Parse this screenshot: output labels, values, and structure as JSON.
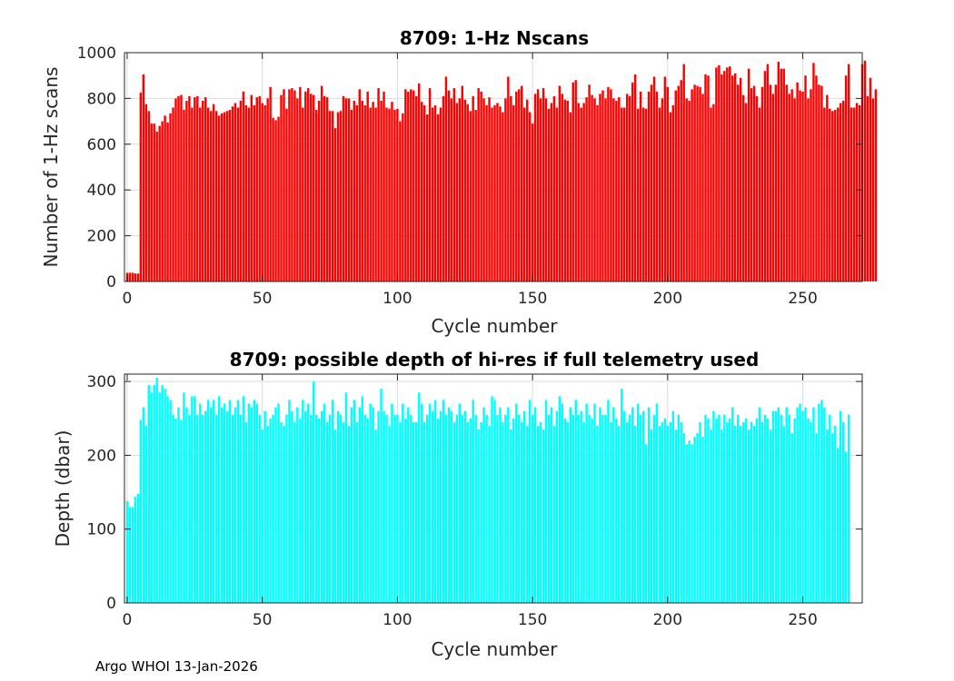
{
  "footer": "Argo WHOI 13-Jan-2026",
  "chart_data": [
    {
      "type": "bar",
      "title": "8709: 1-Hz Nscans",
      "xlabel": "Cycle number",
      "ylabel": "Number of 1-Hz scans",
      "color": "#ff0000",
      "xlim": [
        -1,
        272
      ],
      "ylim": [
        0,
        1000
      ],
      "xticks": [
        0,
        50,
        100,
        150,
        200,
        250
      ],
      "yticks": [
        0,
        200,
        400,
        600,
        800,
        1000
      ],
      "grid": true,
      "values": [
        38,
        38,
        38,
        35,
        35,
        825,
        905,
        775,
        745,
        690,
        690,
        655,
        680,
        700,
        725,
        695,
        735,
        760,
        800,
        810,
        815,
        750,
        790,
        810,
        760,
        805,
        810,
        760,
        790,
        805,
        760,
        745,
        775,
        745,
        725,
        735,
        740,
        745,
        750,
        765,
        780,
        760,
        790,
        830,
        770,
        760,
        815,
        770,
        805,
        810,
        780,
        770,
        800,
        850,
        715,
        705,
        720,
        815,
        840,
        755,
        840,
        845,
        835,
        800,
        850,
        760,
        830,
        845,
        820,
        815,
        750,
        790,
        855,
        810,
        805,
        745,
        745,
        670,
        740,
        745,
        810,
        800,
        800,
        750,
        790,
        770,
        840,
        790,
        770,
        830,
        760,
        785,
        760,
        845,
        790,
        830,
        760,
        755,
        785,
        750,
        755,
        700,
        735,
        840,
        830,
        840,
        835,
        810,
        865,
        785,
        770,
        730,
        845,
        760,
        770,
        730,
        760,
        810,
        895,
        835,
        800,
        845,
        780,
        800,
        855,
        795,
        775,
        745,
        810,
        750,
        845,
        830,
        800,
        770,
        805,
        760,
        770,
        780,
        765,
        740,
        800,
        895,
        810,
        770,
        830,
        840,
        855,
        760,
        795,
        740,
        690,
        820,
        840,
        800,
        845,
        800,
        755,
        780,
        810,
        760,
        855,
        820,
        795,
        790,
        740,
        870,
        880,
        780,
        760,
        780,
        805,
        860,
        815,
        800,
        770,
        820,
        835,
        800,
        850,
        840,
        800,
        790,
        805,
        760,
        760,
        820,
        810,
        870,
        905,
        755,
        830,
        760,
        755,
        830,
        860,
        895,
        830,
        760,
        800,
        895,
        850,
        740,
        770,
        835,
        855,
        880,
        950,
        800,
        790,
        840,
        860,
        855,
        850,
        820,
        905,
        900,
        760,
        775,
        935,
        945,
        905,
        920,
        935,
        940,
        900,
        910,
        860,
        890,
        815,
        780,
        930,
        845,
        855,
        810,
        760,
        850,
        920,
        950,
        860,
        820,
        860,
        960,
        930,
        930,
        860,
        820,
        840,
        800,
        870,
        835,
        830,
        900,
        800,
        840,
        955,
        900,
        860,
        855,
        760,
        815,
        755,
        745,
        750,
        760,
        780,
        790,
        900,
        950,
        760,
        760,
        780,
        770,
        950,
        965,
        810,
        890,
        800,
        840
      ]
    },
    {
      "type": "bar",
      "title": "8709: possible depth of hi-res if full telemetry used",
      "xlabel": "Cycle number",
      "ylabel": "Depth (dbar)",
      "color": "#00ffff",
      "xlim": [
        -1,
        272
      ],
      "ylim": [
        0,
        310
      ],
      "xticks": [
        0,
        50,
        100,
        150,
        200,
        250
      ],
      "yticks": [
        0,
        100,
        200,
        300
      ],
      "grid": true,
      "values": [
        138,
        130,
        130,
        144,
        148,
        248,
        265,
        240,
        295,
        285,
        295,
        305,
        285,
        295,
        290,
        280,
        275,
        255,
        250,
        265,
        248,
        285,
        265,
        255,
        280,
        280,
        255,
        270,
        255,
        260,
        275,
        265,
        275,
        255,
        280,
        265,
        270,
        260,
        275,
        255,
        265,
        275,
        255,
        280,
        245,
        270,
        265,
        275,
        270,
        255,
        235,
        260,
        240,
        250,
        255,
        265,
        270,
        245,
        240,
        255,
        275,
        260,
        245,
        265,
        250,
        275,
        260,
        270,
        255,
        300,
        255,
        250,
        260,
        270,
        245,
        255,
        275,
        235,
        260,
        255,
        245,
        285,
        240,
        265,
        275,
        245,
        265,
        280,
        255,
        250,
        270,
        265,
        235,
        260,
        290,
        260,
        255,
        240,
        270,
        255,
        255,
        245,
        270,
        250,
        265,
        255,
        245,
        245,
        285,
        270,
        245,
        255,
        270,
        260,
        275,
        250,
        260,
        275,
        255,
        265,
        260,
        245,
        255,
        270,
        255,
        260,
        245,
        250,
        275,
        255,
        235,
        245,
        265,
        255,
        240,
        280,
        275,
        255,
        265,
        245,
        255,
        265,
        235,
        250,
        270,
        255,
        245,
        260,
        240,
        275,
        255,
        265,
        240,
        245,
        235,
        275,
        255,
        265,
        240,
        260,
        280,
        270,
        250,
        245,
        265,
        255,
        275,
        255,
        260,
        245,
        270,
        255,
        250,
        270,
        240,
        265,
        255,
        255,
        275,
        245,
        265,
        250,
        240,
        290,
        260,
        245,
        255,
        265,
        240,
        270,
        255,
        260,
        215,
        265,
        235,
        255,
        270,
        240,
        245,
        250,
        240,
        245,
        260,
        235,
        255,
        245,
        230,
        215,
        220,
        215,
        225,
        230,
        245,
        225,
        255,
        250,
        235,
        260,
        250,
        255,
        235,
        255,
        245,
        250,
        265,
        240,
        255,
        240,
        245,
        250,
        235,
        245,
        240,
        250,
        265,
        245,
        255,
        250,
        235,
        260,
        260,
        265,
        255,
        240,
        265,
        255,
        230,
        250,
        265,
        270,
        260,
        265,
        250,
        245,
        265,
        230,
        270,
        275,
        265,
        235,
        255,
        230,
        240,
        210,
        260,
        245,
        205,
        255
      ]
    }
  ]
}
